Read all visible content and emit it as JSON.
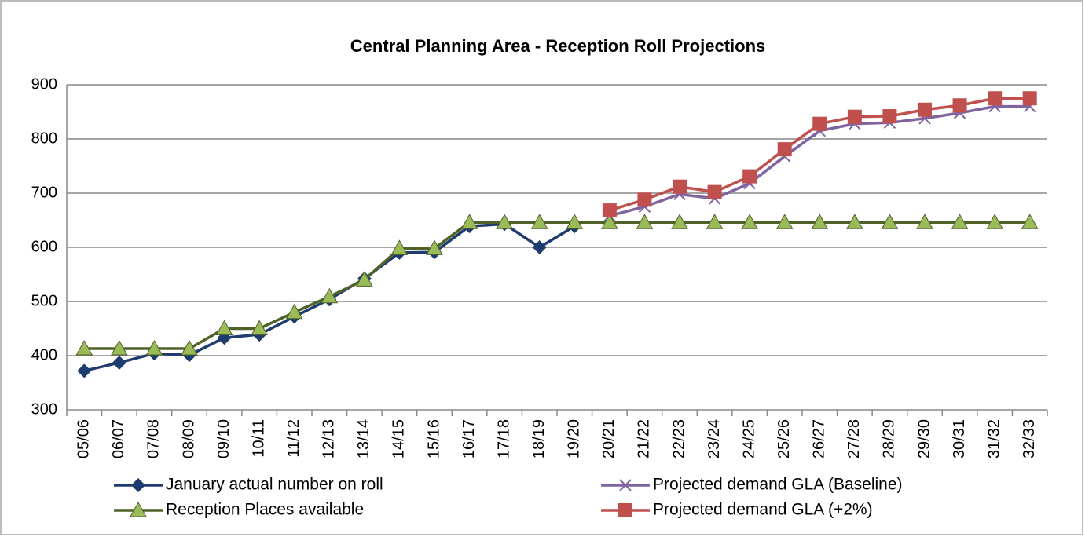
{
  "chart_data": {
    "type": "line",
    "title": "Central Planning Area - Reception Roll Projections",
    "categories": [
      "05/06",
      "06/07",
      "07/08",
      "08/09",
      "09/10",
      "10/11",
      "11/12",
      "12/13",
      "13/14",
      "14/15",
      "15/16",
      "16/17",
      "17/18",
      "18/19",
      "19/20",
      "20/21",
      "21/22",
      "22/23",
      "23/24",
      "24/25",
      "25/26",
      "26/27",
      "27/28",
      "28/29",
      "29/30",
      "30/31",
      "31/32",
      "32/33"
    ],
    "series": [
      {
        "name": "January actual number on roll",
        "color": "#1f3c6e",
        "marker": "diamond",
        "values": [
          372,
          387,
          404,
          401,
          433,
          439,
          472,
          504,
          542,
          590,
          591,
          639,
          643,
          600,
          639,
          null,
          null,
          null,
          null,
          null,
          null,
          null,
          null,
          null,
          null,
          null,
          null,
          null
        ]
      },
      {
        "name": "Projected demand GLA (Baseline)",
        "color": "#8064a2",
        "marker": "x",
        "values": [
          null,
          null,
          null,
          null,
          null,
          null,
          null,
          null,
          null,
          null,
          null,
          null,
          null,
          null,
          null,
          658,
          675,
          698,
          690,
          718,
          768,
          815,
          828,
          830,
          838,
          848,
          860,
          860
        ]
      },
      {
        "name": "Reception Places available",
        "color": "#4f6228",
        "marker": "triangle",
        "values": [
          413,
          413,
          413,
          413,
          450,
          450,
          480,
          509,
          540,
          598,
          598,
          646,
          646,
          646,
          646,
          646,
          646,
          646,
          646,
          646,
          646,
          646,
          646,
          646,
          646,
          646,
          646,
          646
        ]
      },
      {
        "name": "Projected demand GLA (+2%)",
        "color": "#c0504d",
        "marker": "square",
        "values": [
          null,
          null,
          null,
          null,
          null,
          null,
          null,
          null,
          null,
          null,
          null,
          null,
          null,
          null,
          null,
          668,
          688,
          712,
          702,
          731,
          781,
          828,
          841,
          842,
          854,
          862,
          875,
          875
        ]
      }
    ],
    "ylim": [
      300,
      900
    ],
    "yticks": [
      300,
      400,
      500,
      600,
      700,
      800,
      900
    ],
    "grid": true,
    "legend": "bottom"
  }
}
